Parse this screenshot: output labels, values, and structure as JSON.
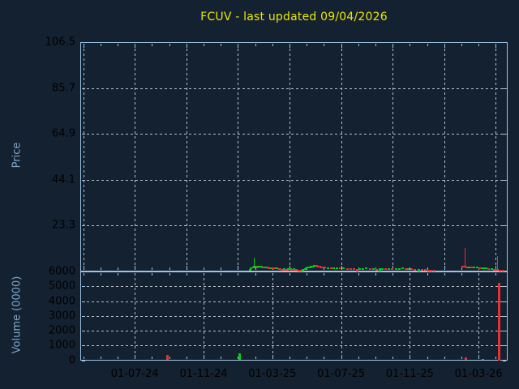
{
  "title": {
    "text": "FCUV - last updated 09/04/2026"
  },
  "colors": {
    "background": "#142131",
    "title": "#e9e900",
    "tick_label": "#7fa6c8",
    "axis_border": "#9dc4e4",
    "grid": "#b6bfc7",
    "up": "#00cc11",
    "down": "#e83030"
  },
  "price_axis": {
    "label": "Price",
    "tick_labels": [
      "106.5",
      "85.7",
      "64.9",
      "44.1",
      "23.3"
    ],
    "tick_values": [
      106.5,
      85.7,
      64.9,
      44.1,
      23.3
    ],
    "min": 2.5,
    "max": 106.5
  },
  "volume_axis": {
    "label": "Volume (0000)",
    "tick_labels": [
      "6000",
      "5000",
      "4000",
      "3000",
      "2000",
      "1000",
      "0"
    ],
    "tick_values": [
      6000,
      5000,
      4000,
      3000,
      2000,
      1000,
      0
    ],
    "min": 0,
    "max": 6000
  },
  "x_axis": {
    "labels": [
      {
        "label": "01-07-24",
        "t": 3
      },
      {
        "label": "01-11-24",
        "t": 7
      },
      {
        "label": "01-03-25",
        "t": 11
      },
      {
        "label": "01-07-25",
        "t": 15
      },
      {
        "label": "01-11-25",
        "t": 19
      },
      {
        "label": "01-03-26",
        "t": 23
      }
    ],
    "months_visible": 24.6,
    "x_unit": "months since 2024-04-01"
  },
  "chart_data": {
    "type": "candlestick",
    "title": "FCUV - last updated 09/04/2026",
    "x_unit": "months since 2024-04-01 (t=3 is 01-07-24)",
    "price_panel": {
      "ylabel": "Price",
      "ylim": [
        2.5,
        106.5
      ],
      "yticks": [
        23.3,
        44.1,
        64.9,
        85.7,
        106.5
      ],
      "grid_months": [
        0,
        3,
        6,
        9,
        12,
        15,
        18,
        21,
        24
      ],
      "grid_style": "dashed"
    },
    "volume_panel": {
      "ylabel": "Volume (0000)",
      "ylim": [
        0,
        6000
      ],
      "yticks": [
        0,
        1000,
        2000,
        3000,
        4000,
        5000,
        6000
      ],
      "grid_months": [
        3,
        7,
        11,
        15,
        19,
        23
      ],
      "grid_style": "dashed"
    },
    "candles_format": "[t_months, body_low_price, body_high_price, color g|r, optional wick_high_price]",
    "candles": [
      [
        9.69,
        2.9,
        3.6,
        "g"
      ],
      [
        9.78,
        3.3,
        4.1,
        "g"
      ],
      [
        9.88,
        3.8,
        4.5,
        "g"
      ],
      [
        9.97,
        3.9,
        5.0,
        "g",
        8.6
      ],
      [
        10.07,
        4.2,
        4.9,
        "g"
      ],
      [
        10.16,
        4.0,
        4.6,
        "r"
      ],
      [
        10.25,
        4.1,
        4.8,
        "g"
      ],
      [
        10.35,
        4.3,
        4.9,
        "g"
      ],
      [
        10.44,
        4.1,
        4.7,
        "r"
      ],
      [
        10.54,
        3.9,
        4.5,
        "r"
      ],
      [
        10.63,
        4.0,
        4.6,
        "g"
      ],
      [
        10.73,
        3.8,
        4.4,
        "r"
      ],
      [
        10.82,
        3.6,
        4.2,
        "r"
      ],
      [
        10.92,
        3.7,
        4.3,
        "g"
      ],
      [
        11.01,
        3.5,
        4.1,
        "r"
      ],
      [
        11.1,
        3.4,
        4.0,
        "r"
      ],
      [
        11.2,
        3.5,
        4.2,
        "g"
      ],
      [
        11.29,
        3.4,
        4.0,
        "g"
      ],
      [
        11.39,
        3.2,
        3.8,
        "r"
      ],
      [
        11.48,
        3.1,
        3.7,
        "r"
      ],
      [
        11.58,
        3.0,
        3.6,
        "r"
      ],
      [
        11.67,
        3.1,
        3.8,
        "g"
      ],
      [
        11.76,
        3.0,
        3.6,
        "r"
      ],
      [
        11.86,
        2.9,
        3.5,
        "r"
      ],
      [
        11.95,
        3.0,
        3.7,
        "g"
      ],
      [
        12.05,
        3.1,
        3.8,
        "g"
      ],
      [
        12.14,
        3.0,
        3.6,
        "r"
      ],
      [
        12.24,
        3.1,
        3.7,
        "g"
      ],
      [
        12.33,
        2.9,
        3.5,
        "r"
      ],
      [
        12.42,
        2.7,
        3.3,
        "r"
      ],
      [
        12.52,
        2.5,
        3.1,
        "r"
      ],
      [
        12.61,
        2.4,
        2.9,
        "r"
      ],
      [
        12.71,
        2.5,
        3.2,
        "g"
      ],
      [
        12.8,
        2.8,
        3.5,
        "g"
      ],
      [
        12.9,
        3.1,
        3.8,
        "g"
      ],
      [
        12.99,
        3.4,
        4.1,
        "g"
      ],
      [
        13.08,
        3.7,
        4.4,
        "g"
      ],
      [
        13.18,
        4.0,
        4.6,
        "g"
      ],
      [
        13.27,
        4.2,
        4.8,
        "g"
      ],
      [
        13.37,
        4.4,
        5.0,
        "g"
      ],
      [
        13.46,
        4.6,
        5.2,
        "g"
      ],
      [
        13.56,
        4.4,
        5.1,
        "r"
      ],
      [
        13.65,
        4.3,
        4.9,
        "r"
      ],
      [
        13.75,
        4.2,
        4.8,
        "r"
      ],
      [
        13.84,
        4.0,
        4.6,
        "r"
      ],
      [
        13.93,
        3.9,
        4.5,
        "r"
      ],
      [
        14.03,
        3.8,
        4.4,
        "r"
      ],
      [
        14.22,
        3.7,
        4.3,
        "g"
      ],
      [
        14.41,
        3.6,
        4.2,
        "r"
      ],
      [
        14.59,
        3.5,
        4.1,
        "g"
      ],
      [
        14.78,
        3.6,
        4.3,
        "g"
      ],
      [
        14.97,
        3.5,
        4.1,
        "r"
      ],
      [
        15.16,
        3.4,
        4.0,
        "g"
      ],
      [
        15.35,
        3.3,
        3.9,
        "r"
      ],
      [
        15.54,
        3.2,
        3.8,
        "r"
      ],
      [
        15.73,
        3.1,
        3.7,
        "r"
      ],
      [
        15.92,
        2.4,
        3.6,
        "r"
      ],
      [
        16.1,
        3.1,
        3.7,
        "g"
      ],
      [
        16.29,
        3.2,
        3.9,
        "g"
      ],
      [
        16.48,
        3.3,
        4.0,
        "g"
      ],
      [
        16.67,
        3.2,
        3.8,
        "r"
      ],
      [
        16.86,
        3.1,
        3.7,
        "g"
      ],
      [
        17.05,
        3.0,
        3.6,
        "r"
      ],
      [
        17.24,
        2.4,
        3.7,
        "g"
      ],
      [
        17.42,
        3.2,
        3.8,
        "g"
      ],
      [
        17.61,
        3.1,
        3.7,
        "r"
      ],
      [
        17.8,
        3.2,
        3.9,
        "g"
      ],
      [
        17.99,
        3.1,
        3.7,
        "r"
      ],
      [
        18.18,
        3.2,
        3.8,
        "g"
      ],
      [
        18.37,
        3.3,
        3.9,
        "g"
      ],
      [
        18.56,
        3.4,
        4.0,
        "g"
      ],
      [
        18.75,
        3.3,
        3.9,
        "r"
      ],
      [
        18.93,
        3.2,
        3.8,
        "g"
      ],
      [
        19.12,
        3.1,
        3.7,
        "r"
      ],
      [
        19.31,
        3.0,
        3.6,
        "r"
      ],
      [
        19.5,
        2.4,
        3.5,
        "g"
      ],
      [
        19.69,
        2.8,
        3.4,
        "r"
      ],
      [
        19.88,
        2.7,
        3.3,
        "r"
      ],
      [
        20.07,
        2.6,
        3.2,
        "r"
      ],
      [
        20.25,
        2.6,
        3.1,
        "r"
      ],
      [
        20.44,
        2.5,
        3.1,
        "r"
      ],
      [
        22.05,
        4.0,
        4.8,
        "r"
      ],
      [
        22.19,
        4.2,
        5.0,
        "r",
        13.0
      ],
      [
        22.33,
        4.0,
        4.7,
        "r"
      ],
      [
        22.47,
        3.9,
        4.6,
        "g"
      ],
      [
        22.61,
        3.8,
        4.4,
        "r"
      ],
      [
        22.75,
        3.9,
        4.5,
        "g"
      ],
      [
        22.9,
        3.8,
        4.4,
        "g"
      ],
      [
        23.04,
        3.6,
        4.2,
        "r"
      ],
      [
        23.18,
        3.7,
        4.3,
        "g"
      ],
      [
        23.32,
        3.5,
        4.1,
        "g"
      ],
      [
        23.46,
        3.4,
        4.0,
        "g"
      ],
      [
        23.6,
        3.2,
        3.8,
        "r"
      ],
      [
        23.75,
        3.1,
        3.7,
        "g"
      ],
      [
        23.89,
        2.9,
        3.5,
        "r"
      ],
      [
        24.03,
        2.7,
        3.3,
        "r"
      ],
      [
        24.12,
        2.7,
        3.3,
        "r",
        9.3
      ],
      [
        24.26,
        2.5,
        3.1,
        "r"
      ],
      [
        24.41,
        2.4,
        3.0,
        "r"
      ]
    ],
    "volume_bars_format": "[t_months, volume_0000, color r|g]",
    "volume_bars": [
      [
        4.92,
        350,
        "r"
      ],
      [
        9.08,
        450,
        "g"
      ],
      [
        22.24,
        200,
        "r"
      ],
      [
        23.27,
        100,
        "g"
      ],
      [
        24.17,
        5250,
        "r"
      ]
    ]
  }
}
